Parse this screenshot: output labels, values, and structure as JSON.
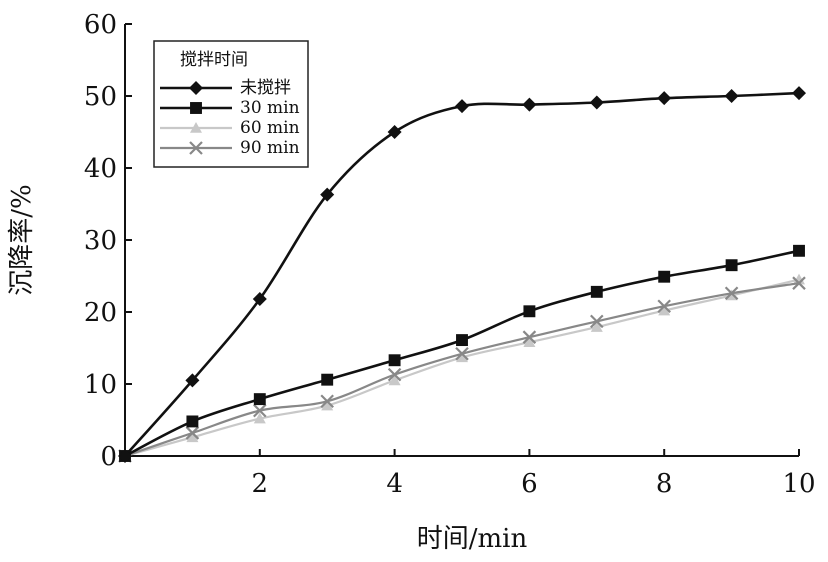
{
  "chart_data": {
    "type": "line",
    "title": "",
    "xlabel": "时间/min",
    "ylabel": "沉降率/%",
    "xlim": [
      0,
      10
    ],
    "ylim": [
      0,
      60
    ],
    "xticks": [
      2,
      4,
      6,
      8,
      10
    ],
    "yticks": [
      0,
      10,
      20,
      30,
      40,
      50,
      60
    ],
    "grid": false,
    "legend": {
      "title": "搅拌时间",
      "placement": "top-left"
    },
    "x": [
      0,
      1,
      2,
      3,
      4,
      5,
      6,
      7,
      8,
      9,
      10
    ],
    "series": [
      {
        "name": "未搅拌",
        "marker": "diamond",
        "color": "#111111",
        "values": [
          0,
          10.5,
          21.8,
          36.3,
          45.0,
          48.6,
          48.8,
          49.1,
          49.7,
          50.0,
          50.4
        ]
      },
      {
        "name": "30 min",
        "marker": "square",
        "color": "#111111",
        "values": [
          0,
          4.8,
          7.9,
          10.6,
          13.3,
          16.1,
          20.1,
          22.8,
          24.9,
          26.5,
          28.5
        ]
      },
      {
        "name": "60 min",
        "marker": "triangle",
        "color": "#c8c8c8",
        "values": [
          0,
          2.6,
          5.2,
          7.0,
          10.5,
          13.7,
          15.8,
          17.9,
          20.2,
          22.3,
          24.5
        ]
      },
      {
        "name": "90 min",
        "marker": "x",
        "color": "#888888",
        "values": [
          0,
          3.2,
          6.3,
          7.6,
          11.3,
          14.2,
          16.5,
          18.7,
          20.8,
          22.6,
          24.0
        ]
      }
    ]
  }
}
